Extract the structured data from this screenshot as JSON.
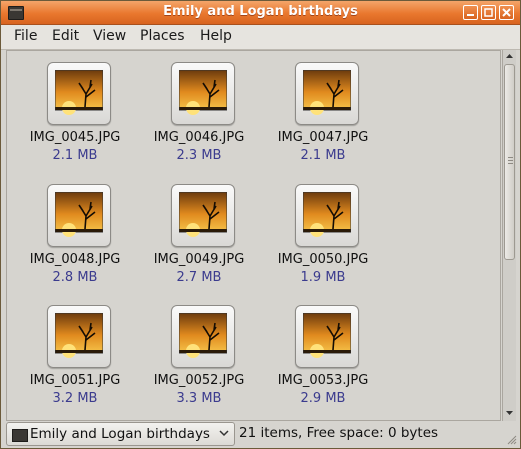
{
  "window": {
    "title": "Emily and Logan birthdays"
  },
  "menubar": {
    "items": [
      {
        "label": "File"
      },
      {
        "label": "Edit"
      },
      {
        "label": "View"
      },
      {
        "label": "Places"
      },
      {
        "label": "Help"
      }
    ]
  },
  "files": [
    {
      "name": "IMG_0045.JPG",
      "size": "2.1 MB"
    },
    {
      "name": "IMG_0046.JPG",
      "size": "2.3 MB"
    },
    {
      "name": "IMG_0047.JPG",
      "size": "2.1 MB"
    },
    {
      "name": "IMG_0048.JPG",
      "size": "2.8 MB"
    },
    {
      "name": "IMG_0049.JPG",
      "size": "2.7 MB"
    },
    {
      "name": "IMG_0050.JPG",
      "size": "1.9 MB"
    },
    {
      "name": "IMG_0051.JPG",
      "size": "3.2 MB"
    },
    {
      "name": "IMG_0052.JPG",
      "size": "3.3 MB"
    },
    {
      "name": "IMG_0053.JPG",
      "size": "2.9 MB"
    }
  ],
  "statusbar": {
    "location": "Emily and Logan birthdays",
    "status": "21 items, Free space: 0 bytes"
  },
  "colors": {
    "titlebar": "#e9772e",
    "background": "#d6d4cf",
    "size_text": "#3b3b8e"
  },
  "icons": {
    "window": "folder-icon",
    "thumbnail": "image-thumbnail-icon"
  }
}
